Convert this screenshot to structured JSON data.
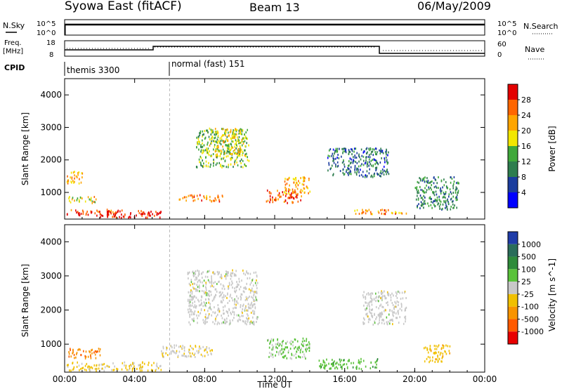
{
  "header": {
    "station": "Syowa East (fitACF)",
    "beam": "Beam 13",
    "date": "06/May/2009"
  },
  "strip_labels": {
    "nsky": "N.Sky",
    "nsearch": "N.Search",
    "freq_line1": "Freq.",
    "freq_line2": "[MHz]",
    "nave": "Nave",
    "cpid": "CPID",
    "nsky_ticks": [
      "10^5",
      "10^0"
    ],
    "nsearch_ticks": [
      "10^5",
      "10^0"
    ],
    "freq_ticks": [
      "18",
      "8"
    ],
    "nave_ticks": [
      "60",
      "0"
    ]
  },
  "cpid_segments": [
    {
      "label": "themis 3300",
      "start_hour": 0,
      "end_hour": 6
    },
    {
      "label": "normal (fast) 151",
      "start_hour": 6,
      "end_hour": 24
    }
  ],
  "colors": {
    "power": [
      "#0000ff",
      "#1b3d9e",
      "#2e7d4e",
      "#3fa83a",
      "#f2e600",
      "#ffa500",
      "#ff6600",
      "#e30000"
    ],
    "velocity": [
      "#1f3ca8",
      "#2a6d5a",
      "#2e8b3a",
      "#5ac23a",
      "#c8c8c8",
      "#f0c000",
      "#f89400",
      "#ff5a00",
      "#e80000"
    ]
  },
  "chart_data": [
    {
      "type": "heatmap",
      "name": "power",
      "ylabel": "Slant Range [km]",
      "xlabel": "",
      "xlim": [
        0,
        24
      ],
      "ylim": [
        180,
        4500
      ],
      "x_ticks": [
        "00:00",
        "04:00",
        "08:00",
        "12:00",
        "16:00",
        "20:00",
        "00:00"
      ],
      "y_ticks": [
        1000,
        2000,
        3000,
        4000
      ],
      "colorbar": {
        "label": "Power [dB]",
        "ticks": [
          "28",
          "24",
          "20",
          "16",
          "12",
          "8",
          "4"
        ],
        "range": [
          0,
          30
        ]
      },
      "regions": [
        {
          "t0": 0.1,
          "t1": 3.0,
          "r0": 300,
          "r1": 500,
          "value": 26
        },
        {
          "t0": 2.0,
          "t1": 5.5,
          "r0": 250,
          "r1": 480,
          "value": 28
        },
        {
          "t0": 0.1,
          "t1": 1.0,
          "r0": 1300,
          "r1": 1700,
          "value": 20
        },
        {
          "t0": 0.2,
          "t1": 1.8,
          "r0": 700,
          "r1": 900,
          "value": 18
        },
        {
          "t0": 6.5,
          "t1": 9.0,
          "r0": 750,
          "r1": 950,
          "value": 22
        },
        {
          "t0": 7.5,
          "t1": 10.5,
          "r0": 1800,
          "r1": 3000,
          "value": 14
        },
        {
          "t0": 8.5,
          "t1": 10.2,
          "r0": 2200,
          "r1": 3000,
          "value": 18
        },
        {
          "t0": 11.5,
          "t1": 13.5,
          "r0": 700,
          "r1": 1100,
          "value": 26
        },
        {
          "t0": 12.5,
          "t1": 14.0,
          "r0": 1000,
          "r1": 1500,
          "value": 20
        },
        {
          "t0": 15.0,
          "t1": 18.5,
          "r0": 1500,
          "r1": 2400,
          "value": 8
        },
        {
          "t0": 16.5,
          "t1": 19.5,
          "r0": 350,
          "r1": 500,
          "value": 22
        },
        {
          "t0": 20.0,
          "t1": 22.5,
          "r0": 500,
          "r1": 1500,
          "value": 10
        }
      ]
    },
    {
      "type": "heatmap",
      "name": "velocity",
      "ylabel": "Slant Range [km]",
      "xlabel": "Time UT",
      "xlim": [
        0,
        24
      ],
      "ylim": [
        180,
        4500
      ],
      "x_ticks": [
        "00:00",
        "04:00",
        "08:00",
        "12:00",
        "16:00",
        "20:00",
        "00:00"
      ],
      "y_ticks": [
        1000,
        2000,
        3000,
        4000
      ],
      "colorbar": {
        "label": "Velocity [m s^-1]",
        "ticks": [
          "1000",
          "500",
          "100",
          "25",
          "-25",
          "-100",
          "-500",
          "-1000"
        ],
        "range": [
          -1200,
          1200
        ]
      },
      "regions": [
        {
          "t0": 0.1,
          "t1": 5.5,
          "r0": 250,
          "r1": 500,
          "value": -200
        },
        {
          "t0": 0.2,
          "t1": 2.0,
          "r0": 600,
          "r1": 900,
          "value": -600
        },
        {
          "t0": 5.5,
          "t1": 8.5,
          "r0": 650,
          "r1": 1000,
          "value": -90
        },
        {
          "t0": 7.0,
          "t1": 11.0,
          "r0": 1600,
          "r1": 3200,
          "value": 0
        },
        {
          "t0": 11.5,
          "t1": 14.0,
          "r0": 600,
          "r1": 1200,
          "value": 200
        },
        {
          "t0": 14.5,
          "t1": 18.0,
          "r0": 300,
          "r1": 600,
          "value": 300
        },
        {
          "t0": 17.0,
          "t1": 19.5,
          "r0": 1600,
          "r1": 2600,
          "value": 0
        },
        {
          "t0": 20.5,
          "t1": 22.0,
          "r0": 500,
          "r1": 1000,
          "value": -300
        }
      ]
    }
  ]
}
